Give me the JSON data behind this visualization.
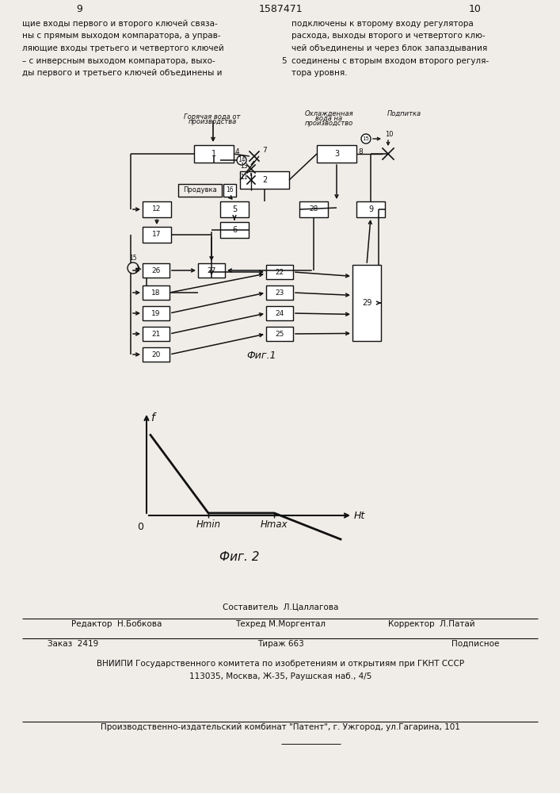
{
  "page_left": "9",
  "page_right": "10",
  "patent_number": "1587471",
  "text_left": "щие входы первого и второго ключей связа-\nны с прямым выходом компаратора, а управ-\nляющие входы третьего и четвертого ключей\n– с инверсным выходом компаратора, выхо-\nды первого и третьего ключей объединены и",
  "text_right": "подключены к второму входу регулятора\nрасхода, выходы второго и четвертого клю-\nчей объединены и через блок запаздывания\nсоединены с вторым входом второго регуля-\nтора уровня.",
  "number_5": "5",
  "fig1_label": "Фиг.1",
  "fig2_label": "Фиг. 2",
  "fig2_f_label": "f",
  "fig2_ht_label": "Ht",
  "fig2_hmin_label": "Hmin",
  "fig2_hmax_label": "Hmax",
  "fig2_0_label": "0",
  "label_goryachaya1": "Горячая вода от",
  "label_goryachaya2": "производства",
  "label_oxl1": "Охлажденная",
  "label_oxl2": "вода на",
  "label_oxl3": "производство",
  "label_podpitka": "Подпитка",
  "label_produvka": "Продувка",
  "footer_composer": "Составитель  Л.Цаллагова",
  "footer_editor": "Редактор  Н.Бобкова",
  "footer_techred": "Техред М.Моргентал",
  "footer_corrector": "Корректор  Л.Патай",
  "footer_order": "Заказ  2419",
  "footer_tirazh": "Тираж 663",
  "footer_podpisnoe": "Подписное",
  "footer_vniipи": "ВНИИПИ Государственного комитета по изобретениям и открытиям при ГКНТ СССР",
  "footer_addr": "113035, Москва, Ж-35, Раушская наб., 4/5",
  "footer_kombat": "Производственно-издательский комбинат \"Патент\", г. Ужгород, ул.Гагарина, 101",
  "bg_color": "#f0ede8",
  "text_color": "#111111",
  "line_color": "#111111"
}
